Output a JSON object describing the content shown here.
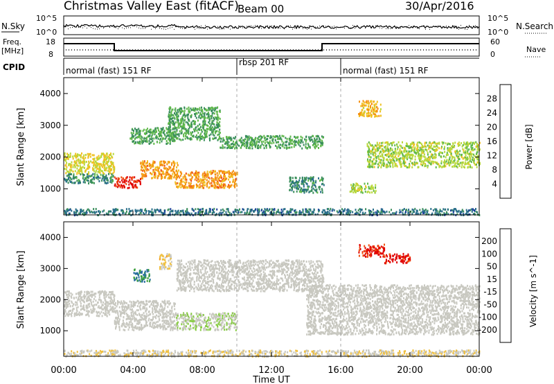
{
  "header": {
    "title": "Christmas Valley East (fitACF)",
    "beam": "Beam 00",
    "date": "30/Apr/2016"
  },
  "noise_panel": {
    "left_label": "N.Sky",
    "right_label": "N.Search",
    "left_ticks": [
      "10^5",
      "10^0"
    ],
    "right_ticks": [
      "10^5",
      "10^0"
    ]
  },
  "freq_panel": {
    "left_label_1": "Freq.",
    "left_label_2": "[MHz]",
    "right_label": "Nave",
    "left_ticks": [
      "18",
      "8"
    ],
    "right_ticks": [
      "60",
      "0"
    ]
  },
  "cpid_panel": {
    "label": "CPID",
    "segments": [
      {
        "start_hour": 0,
        "end_hour": 10,
        "label": "normal (fast) 151 RF"
      },
      {
        "start_hour": 10,
        "end_hour": 16,
        "label": "rbsp 201 RF"
      },
      {
        "start_hour": 16,
        "end_hour": 24,
        "label": "normal (fast) 151 RF"
      }
    ]
  },
  "axes": {
    "xlabel": "Time UT",
    "x_ticks": [
      "00:00",
      "04:00",
      "08:00",
      "12:00",
      "16:00",
      "20:00",
      "00:00"
    ],
    "x_range_hours": [
      0,
      24
    ],
    "ylabel": "Slant Range [km]",
    "y_ticks": [
      "1000",
      "2000",
      "3000",
      "4000"
    ],
    "y_range_km": [
      180,
      4500
    ]
  },
  "colors": {
    "power": [
      "#0018ff",
      "#1a3f9a",
      "#2a6f8a",
      "#3a8e5c",
      "#5fb84a",
      "#b8d83a",
      "#f0c020",
      "#f59010",
      "#f05010",
      "#e00000"
    ],
    "velocity": [
      "#e00000",
      "#f05010",
      "#f59a20",
      "#f0c040",
      "#c8c8c0",
      "#c8c8c0",
      "#88cc44",
      "#3a9e3a",
      "#2a6ea0",
      "#1030d0"
    ]
  },
  "chart_data": [
    {
      "type": "heatmap",
      "title": "",
      "quantity": "Power",
      "colorbar_label": "Power [dB]",
      "colorbar_ticks": [
        "28",
        "24",
        "20",
        "16",
        "12",
        "8",
        "4"
      ],
      "color_range": [
        0,
        30
      ],
      "x_unit": "hours UT",
      "y_unit": "km",
      "regions": [
        {
          "x": [
            0.0,
            2.9
          ],
          "y": [
            1500,
            2150
          ],
          "value": 18
        },
        {
          "x": [
            0.0,
            2.9
          ],
          "y": [
            1200,
            1500
          ],
          "value": 10
        },
        {
          "x": [
            2.9,
            4.4
          ],
          "y": [
            1050,
            1400
          ],
          "value": 28
        },
        {
          "x": [
            4.4,
            6.6
          ],
          "y": [
            1350,
            1900
          ],
          "value": 22
        },
        {
          "x": [
            6.4,
            10.0
          ],
          "y": [
            1050,
            1600
          ],
          "value": 22
        },
        {
          "x": [
            3.8,
            6.4
          ],
          "y": [
            2450,
            2950
          ],
          "value": 12
        },
        {
          "x": [
            6.0,
            9.0
          ],
          "y": [
            2550,
            3600
          ],
          "value": 12
        },
        {
          "x": [
            9.0,
            15.0
          ],
          "y": [
            2300,
            2700
          ],
          "value": 12
        },
        {
          "x": [
            13.0,
            15.0
          ],
          "y": [
            900,
            1400
          ],
          "value": 10
        },
        {
          "x": [
            16.5,
            18.0
          ],
          "y": [
            900,
            1200
          ],
          "value": 16
        },
        {
          "x": [
            17.0,
            18.3
          ],
          "y": [
            3300,
            3800
          ],
          "value": 20
        },
        {
          "x": [
            17.5,
            24.0
          ],
          "y": [
            1700,
            2500
          ],
          "value": 16
        },
        {
          "x": [
            0.0,
            24.0
          ],
          "y": [
            200,
            400
          ],
          "value": 8
        }
      ]
    },
    {
      "type": "heatmap",
      "title": "",
      "quantity": "Velocity",
      "colorbar_label": "Velocity [m s^-1]",
      "colorbar_ticks": [
        "200",
        "100",
        "50",
        "15",
        "-15",
        "-50",
        "-100",
        "-200"
      ],
      "color_range": [
        -250,
        250
      ],
      "x_unit": "hours UT",
      "y_unit": "km",
      "regions": [
        {
          "x": [
            0.0,
            2.9
          ],
          "y": [
            1500,
            2300
          ],
          "value": 0
        },
        {
          "x": [
            2.9,
            6.4
          ],
          "y": [
            1050,
            2000
          ],
          "value": 0
        },
        {
          "x": [
            6.4,
            10.0
          ],
          "y": [
            1050,
            1600
          ],
          "value": 40
        },
        {
          "x": [
            4.0,
            5.0
          ],
          "y": [
            2600,
            3000
          ],
          "value": 150
        },
        {
          "x": [
            5.5,
            6.2
          ],
          "y": [
            3000,
            3500
          ],
          "value": -60
        },
        {
          "x": [
            6.5,
            15.0
          ],
          "y": [
            2300,
            3300
          ],
          "value": 0
        },
        {
          "x": [
            14.0,
            24.0
          ],
          "y": [
            900,
            2500
          ],
          "value": 0
        },
        {
          "x": [
            17.0,
            18.5
          ],
          "y": [
            3400,
            3800
          ],
          "value": -220
        },
        {
          "x": [
            18.5,
            20.0
          ],
          "y": [
            3200,
            3500
          ],
          "value": -220
        },
        {
          "x": [
            0.0,
            24.0
          ],
          "y": [
            200,
            400
          ],
          "value": -40
        }
      ]
    }
  ]
}
